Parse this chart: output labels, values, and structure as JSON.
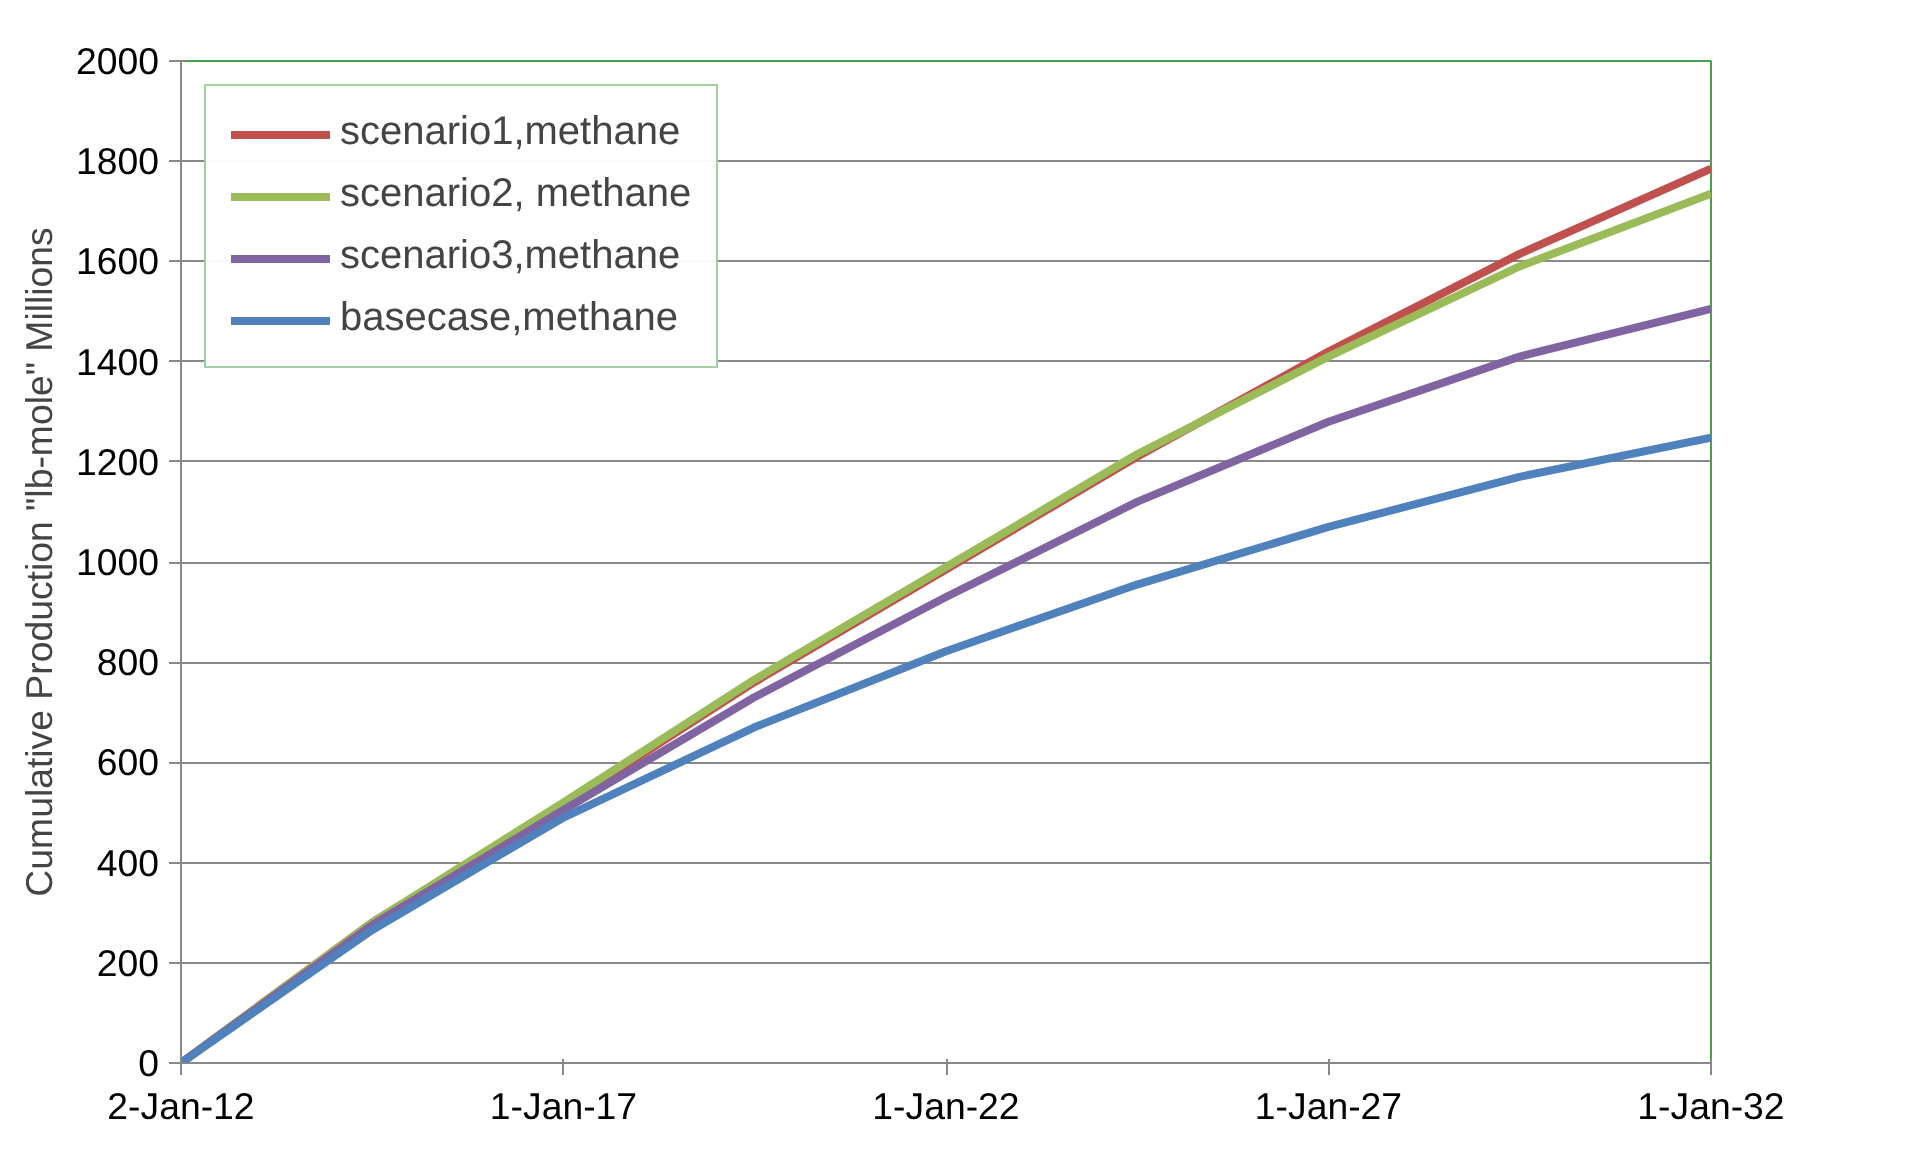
{
  "chart_data": {
    "type": "line",
    "ylabel": "Cumulative Production \"lb-mole\" Millions",
    "x": [
      "2012-01-02",
      "2014-07-01",
      "2017-01-01",
      "2019-07-01",
      "2022-01-01",
      "2024-07-01",
      "2027-01-01",
      "2029-07-01",
      "2032-01-01"
    ],
    "series": [
      {
        "name": "scenario1,methane",
        "color": "#c0504d",
        "values": [
          0,
          280,
          515,
          760,
          985,
          1210,
          1420,
          1615,
          1785
        ]
      },
      {
        "name": "scenario2, methane",
        "color": "#9bbb59",
        "values": [
          0,
          280,
          520,
          765,
          990,
          1215,
          1410,
          1590,
          1735
        ]
      },
      {
        "name": "scenario3,methane",
        "color": "#8064a2",
        "values": [
          0,
          275,
          505,
          730,
          930,
          1120,
          1280,
          1410,
          1505
        ]
      },
      {
        "name": "basecase,methane",
        "color": "#4f81bd",
        "values": [
          0,
          265,
          490,
          670,
          822,
          955,
          1070,
          1170,
          1248
        ]
      }
    ],
    "xlim": [
      "2012-01-02",
      "2032-01-01"
    ],
    "xticks": [
      {
        "value": "2012-01-02",
        "label": "2-Jan-12"
      },
      {
        "value": "2017-01-01",
        "label": "1-Jan-17"
      },
      {
        "value": "2022-01-01",
        "label": "1-Jan-22"
      },
      {
        "value": "2027-01-01",
        "label": "1-Jan-27"
      },
      {
        "value": "2032-01-01",
        "label": "1-Jan-32"
      }
    ],
    "ylim": [
      0,
      2000
    ],
    "yticks": [
      0,
      200,
      400,
      600,
      800,
      1000,
      1200,
      1400,
      1600,
      1800,
      2000
    ],
    "grid": "y",
    "legend": "top left",
    "line_style": "solid",
    "marker": "none"
  }
}
